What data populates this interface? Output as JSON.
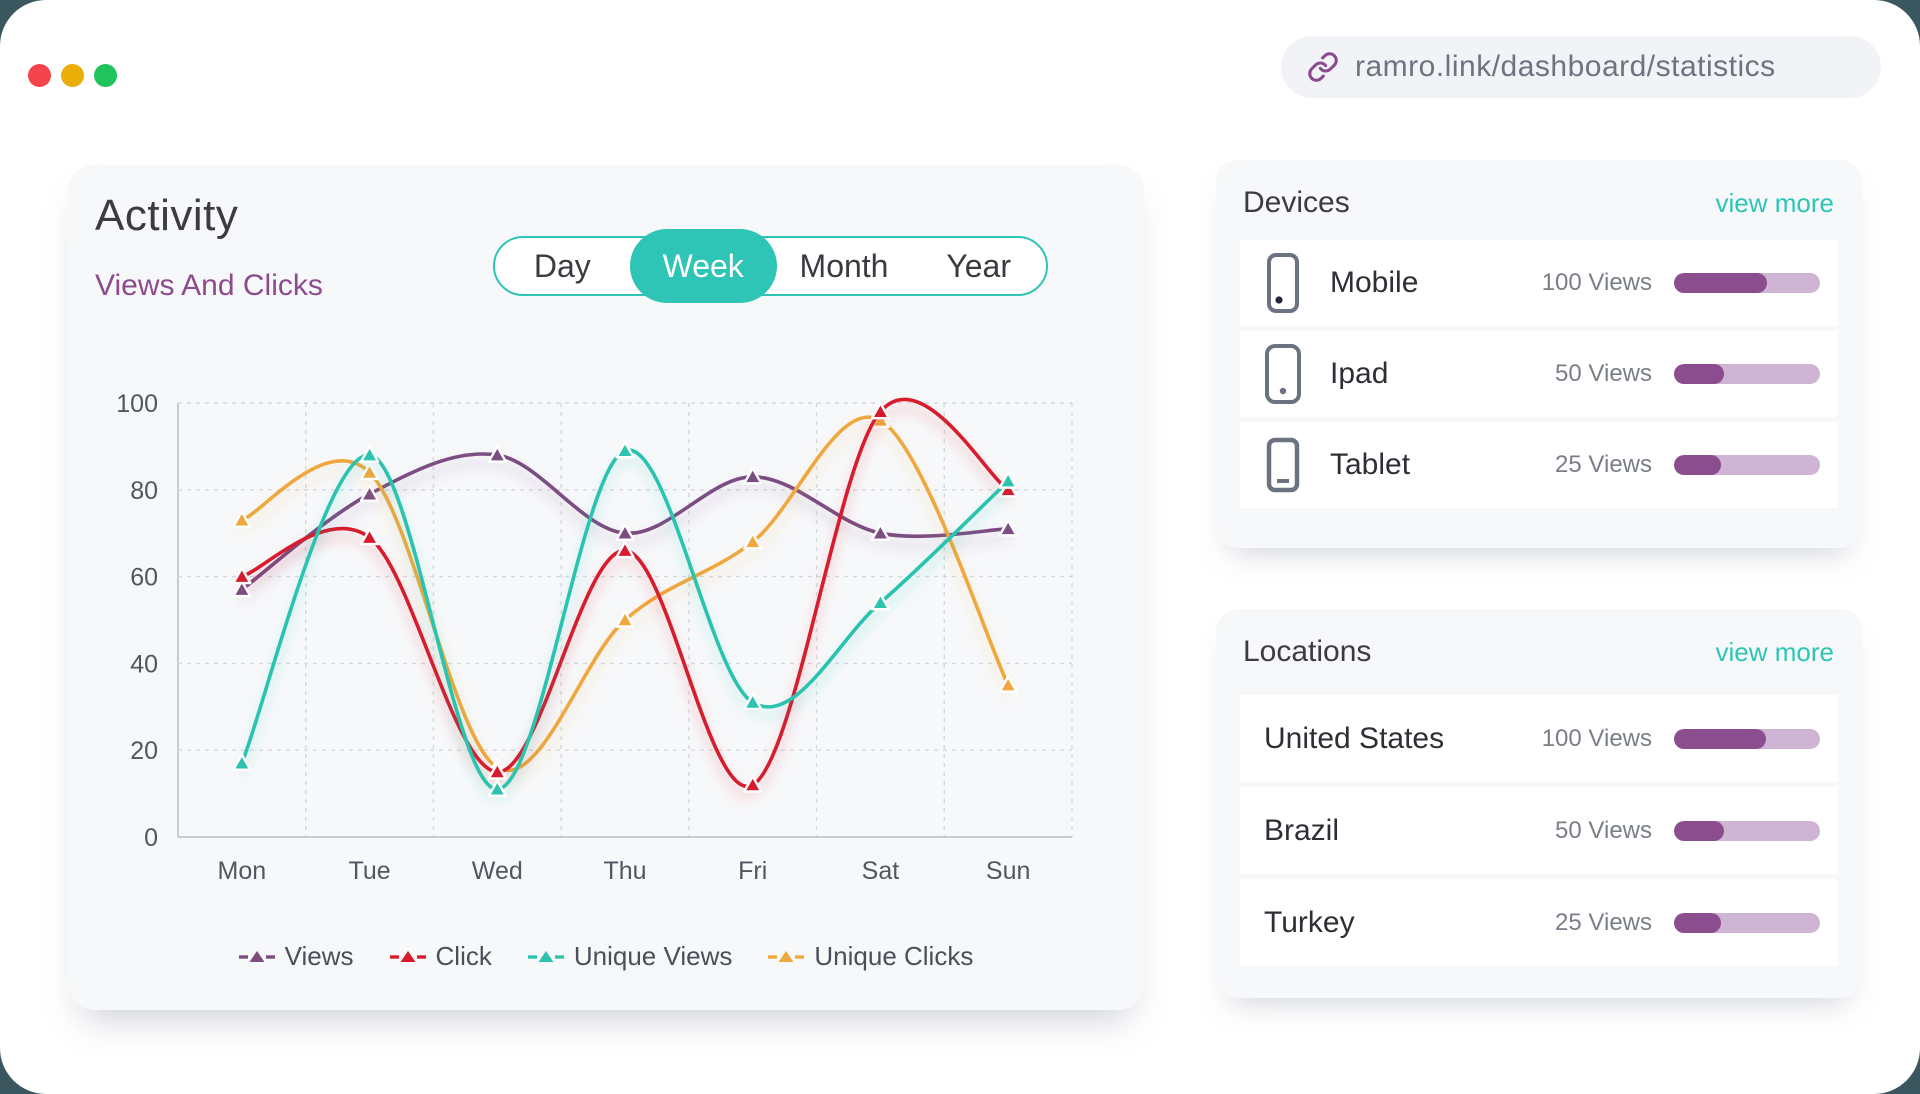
{
  "window": {
    "url": "ramro.link/dashboard/statistics"
  },
  "activity": {
    "title": "Activity",
    "subtitle": "Views And Clicks",
    "tabs": [
      "Day",
      "Week",
      "Month",
      "Year"
    ],
    "active_tab": "Week"
  },
  "chart_data": {
    "type": "line",
    "title": "Activity - Views And Clicks (Week)",
    "categories": [
      "Mon",
      "Tue",
      "Wed",
      "Thu",
      "Fri",
      "Sat",
      "Sun"
    ],
    "series": [
      {
        "name": "Views",
        "color": "#7b4e82",
        "values": [
          57,
          79,
          88,
          70,
          83,
          70,
          71
        ]
      },
      {
        "name": "Click",
        "color": "#d71b2d",
        "values": [
          60,
          69,
          15,
          66,
          12,
          98,
          80
        ]
      },
      {
        "name": "Unique Views",
        "color": "#2cc3af",
        "values": [
          17,
          88,
          11,
          89,
          31,
          54,
          82
        ]
      },
      {
        "name": "Unique Clicks",
        "color": "#f0a73e",
        "values": [
          73,
          84,
          16,
          50,
          68,
          96,
          35
        ]
      }
    ],
    "xlabel": "",
    "ylabel": "",
    "ylim": [
      0,
      100
    ],
    "yticks": [
      0,
      20,
      40,
      60,
      80,
      100
    ],
    "grid": true,
    "grid_style": "dashed",
    "legend_position": "bottom",
    "marker": "triangle"
  },
  "devices": {
    "title": "Devices",
    "view_more": "view more",
    "rows": [
      {
        "icon": "mobile-icon",
        "label": "Mobile",
        "views": "100 Views",
        "percent": 64
      },
      {
        "icon": "ipad-icon",
        "label": "Ipad",
        "views": "50 Views",
        "percent": 34
      },
      {
        "icon": "tablet-icon",
        "label": "Tablet",
        "views": "25 Views",
        "percent": 32
      }
    ]
  },
  "locations": {
    "title": "Locations",
    "view_more": "view more",
    "rows": [
      {
        "label": "United States",
        "views": "100 Views",
        "percent": 63
      },
      {
        "label": "Brazil",
        "views": "50 Views",
        "percent": 34
      },
      {
        "label": "Turkey",
        "views": "25 Views",
        "percent": 32
      }
    ]
  },
  "colors": {
    "accent_teal": "#2ec4b6",
    "brand_purple": "#8b4a8e",
    "bar_fill": "#8b4d8d",
    "bar_track": "#cfb5d4",
    "traffic_red": "#f4434a",
    "traffic_yellow": "#e9ae07",
    "traffic_green": "#1fc55c"
  }
}
